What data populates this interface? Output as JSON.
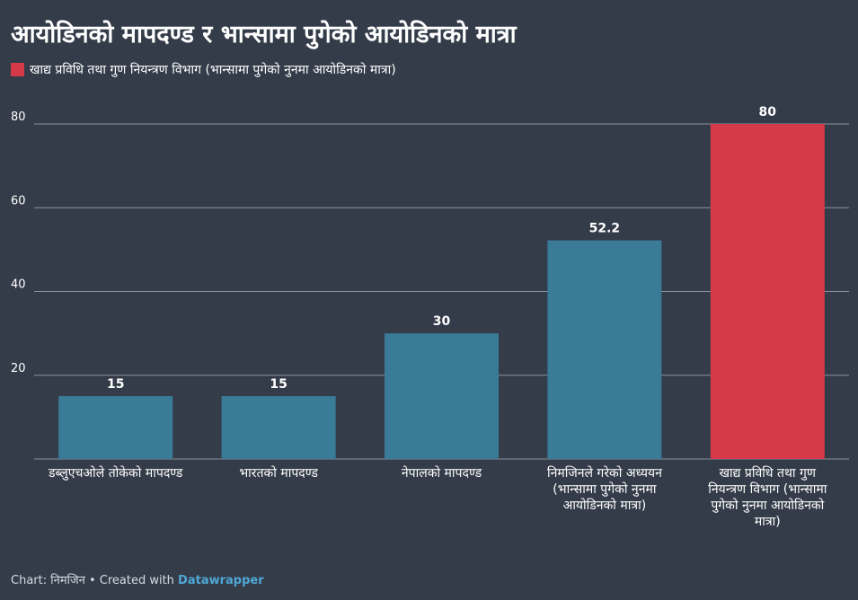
{
  "title": "आयोडिनको मापदण्ड र भान्सामा पुगेको आयोडिनको मात्रा",
  "legend": {
    "label": "खाद्य प्रविधि तथा गुण नियन्त्रण विभाग (भान्सामा पुगेको नुनमा आयोडिनको मात्रा)",
    "color": "#d63a49"
  },
  "footer": {
    "prefix": "Chart: निमजिन • Created with ",
    "brand": "Datawrapper"
  },
  "chart_data": {
    "type": "bar",
    "categories": [
      "डब्लुएचओले तोकेको मापदण्ड",
      "भारतको मापदण्ड",
      "नेपालको मापदण्ड",
      "निमजिनले गरेको अध्ययन (भान्सामा पुगेको नुनमा आयोडिनको मात्रा)",
      "खाद्य प्रविधि तथा गुण नियन्त्रण विभाग (भान्सामा पुगेको नुनमा आयोडिनको मात्रा)"
    ],
    "values": [
      15,
      15,
      30,
      52.2,
      80
    ],
    "value_labels": [
      "15",
      "15",
      "30",
      "52.2",
      "80"
    ],
    "colors": [
      "#3a7b97",
      "#3a7b97",
      "#3a7b97",
      "#3a7b97",
      "#d63a49"
    ],
    "yticks": [
      20,
      40,
      60,
      80
    ],
    "ylim": [
      0,
      80
    ],
    "grid": true,
    "xlabel": "",
    "ylabel": ""
  }
}
